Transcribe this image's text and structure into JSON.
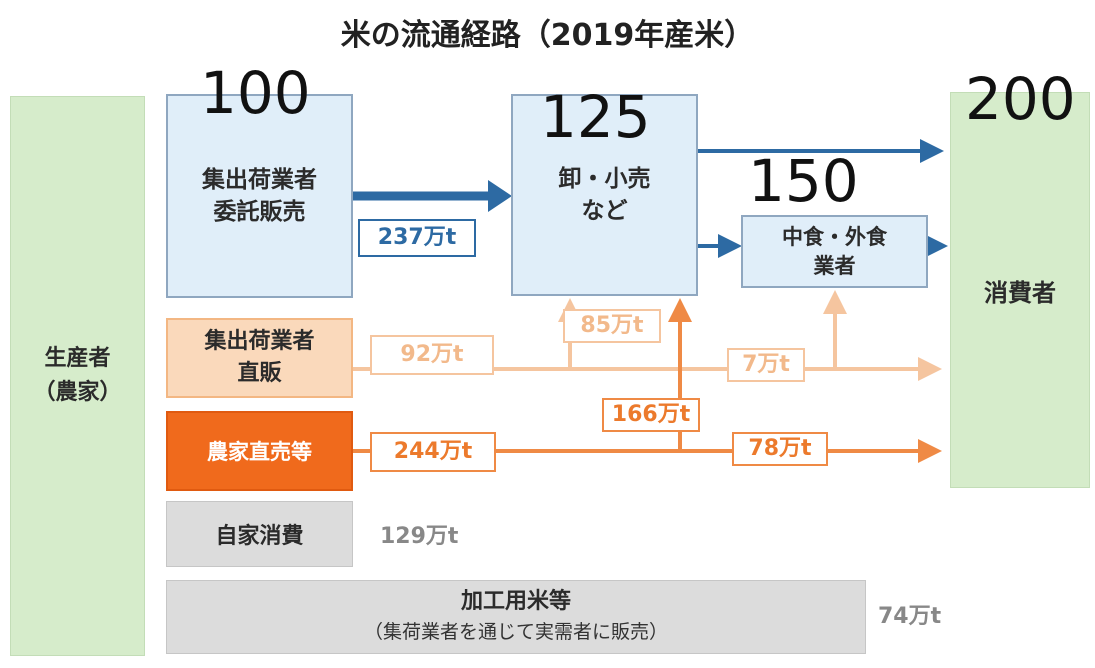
{
  "title": "米の流通経路（2019年産米）",
  "overlay_numbers": [
    "100",
    "125",
    "150",
    "200"
  ],
  "nodes": {
    "producer": [
      "生産者",
      "（農家）"
    ],
    "consumer": "消費者",
    "consignment": [
      "集出荷業者",
      "委託販売"
    ],
    "wholesale": [
      "卸・小売",
      "など"
    ],
    "food_service": [
      "中食・外食",
      "業者"
    ],
    "direct_dealer": [
      "集出荷業者",
      "直販"
    ],
    "farmer_direct": "農家直売等",
    "self_consumption": "自家消費",
    "processing": "加工用米等",
    "processing_note": "（集荷業者を通じて実需者に販売）"
  },
  "flows": {
    "consignment": "237万t",
    "dealer_direct": "92万t",
    "dealer_to_wholesale": "85万t",
    "dealer_to_food": "7万t",
    "farmer_direct": "244万t",
    "farmer_to_wholesale": "166万t",
    "farmer_to_consumer": "78万t",
    "self_consumption": "129万t",
    "processing": "74万t"
  },
  "colors": {
    "blue": "#2d6aa3",
    "peach": "#f5c59f",
    "orange": "#ef8a45",
    "green": "#d6eccb"
  }
}
